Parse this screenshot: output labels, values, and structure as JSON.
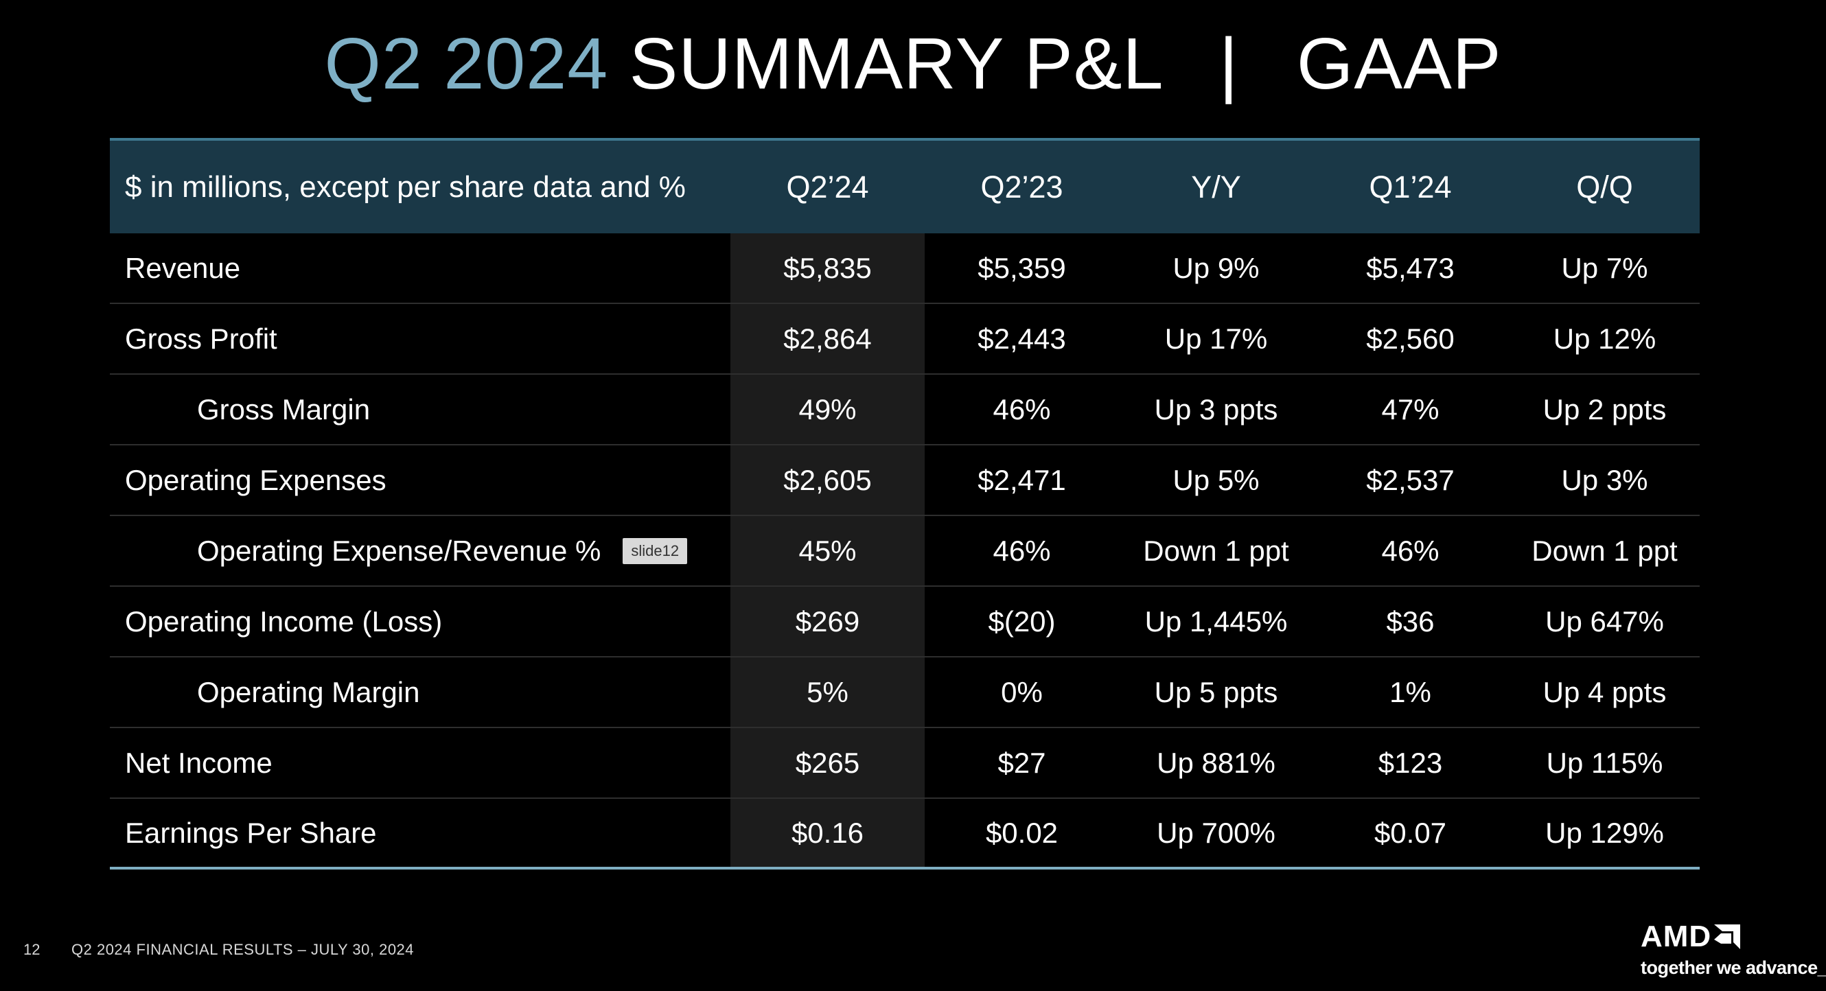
{
  "title": {
    "accent": "Q2 2024",
    "main": "SUMMARY P&L",
    "separator": "|",
    "suffix": "GAAP"
  },
  "table": {
    "headers": [
      "$ in millions, except per share data and %",
      "Q2’24",
      "Q2’23",
      "Y/Y",
      "Q1’24",
      "Q/Q"
    ],
    "rows": [
      {
        "label": "Revenue",
        "values": [
          "$5,835",
          "$5,359",
          "Up 9%",
          "$5,473",
          "Up 7%"
        ]
      },
      {
        "label": "Gross Profit",
        "values": [
          "$2,864",
          "$2,443",
          "Up 17%",
          "$2,560",
          "Up 12%"
        ]
      },
      {
        "label": "Gross Margin",
        "values": [
          "49%",
          "46%",
          "Up 3 ppts",
          "47%",
          "Up 2 ppts"
        ]
      },
      {
        "label": "Operating Expenses",
        "values": [
          "$2,605",
          "$2,471",
          "Up 5%",
          "$2,537",
          "Up 3%"
        ]
      },
      {
        "label": "Operating Expense/Revenue %",
        "tag": "slide12",
        "values": [
          "45%",
          "46%",
          "Down 1 ppt",
          "46%",
          "Down 1 ppt"
        ]
      },
      {
        "label": "Operating Income (Loss)",
        "values": [
          "$269",
          "$(20)",
          "Up 1,445%",
          "$36",
          "Up 647%"
        ]
      },
      {
        "label": "Operating Margin",
        "values": [
          "5%",
          "0%",
          "Up 5 ppts",
          "1%",
          "Up 4 ppts"
        ]
      },
      {
        "label": "Net Income",
        "values": [
          "$265",
          "$27",
          "Up 881%",
          "$123",
          "Up 115%"
        ]
      },
      {
        "label": "Earnings Per Share",
        "values": [
          "$0.16",
          "$0.02",
          "Up 700%",
          "$0.07",
          "Up 129%"
        ]
      }
    ]
  },
  "footer": {
    "page_number": "12",
    "text": "Q2 2024 FINANCIAL RESULTS – JULY 30, 2024"
  },
  "logo": {
    "wordmark": "AMD",
    "icon": "amd-arrow-icon",
    "tagline": "together we advance_"
  },
  "colors": {
    "background": "#000000",
    "title_accent": "#7fb0c6",
    "header_bg": "#1a3847",
    "highlight_column_bg": "#1c1c1c",
    "bottom_rule": "#7faec2"
  }
}
